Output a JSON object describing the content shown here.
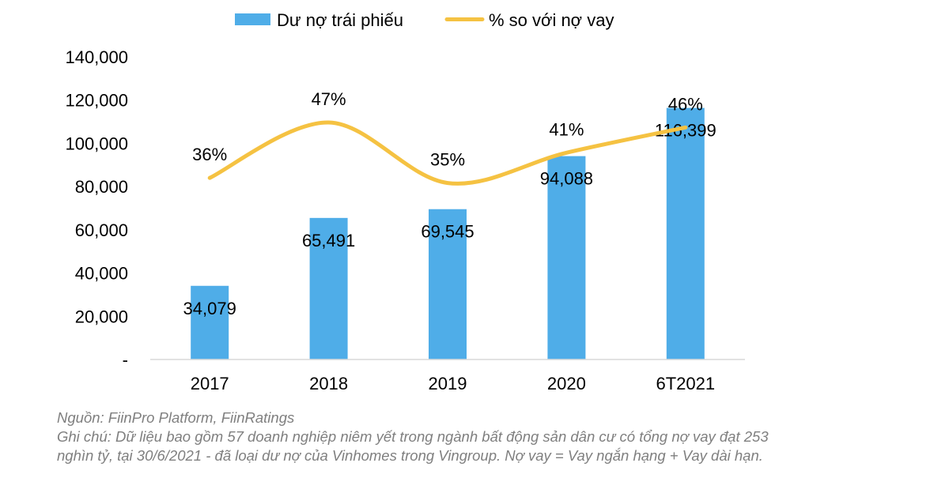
{
  "chart_data": {
    "type": "bar",
    "categories": [
      "2017",
      "2018",
      "2019",
      "2020",
      "6T2021"
    ],
    "series": [
      {
        "name": "Dư nợ trái phiếu",
        "kind": "bar",
        "color": "#4fade8",
        "values": [
          34079,
          65491,
          69545,
          94088,
          116399
        ],
        "labels": [
          "34,079",
          "65,491",
          "69,545",
          "94,088",
          "116,399"
        ]
      },
      {
        "name": "% so với nợ vay",
        "kind": "line",
        "smooth": true,
        "color": "#f5c242",
        "values": [
          36,
          47,
          35,
          41,
          46
        ],
        "labels": [
          "36%",
          "47%",
          "35%",
          "41%",
          "46%"
        ]
      }
    ],
    "y_axis": {
      "ylim": [
        0,
        140000
      ],
      "ticks": [
        0,
        20000,
        40000,
        60000,
        80000,
        100000,
        120000,
        140000
      ],
      "tick_labels": [
        "-",
        "20,000",
        "40,000",
        "60,000",
        "80,000",
        "100,000",
        "120,000",
        "140,000"
      ]
    },
    "secondary_axis_hidden": true,
    "grid": false,
    "legend_position": "top"
  },
  "notes": {
    "source": "Nguồn: FiinPro Platform, FiinRatings",
    "note_line1": "Ghi chú: Dữ liệu bao gồm 57 doanh nghiệp niêm yết trong ngành bất động sản dân cư có tổng nợ vay đạt 253",
    "note_line2": "nghìn tỷ, tại 30/6/2021 - đã loại dư nợ của Vinhomes trong Vingroup. Nợ vay = Vay ngắn hạng + Vay dài hạn."
  }
}
